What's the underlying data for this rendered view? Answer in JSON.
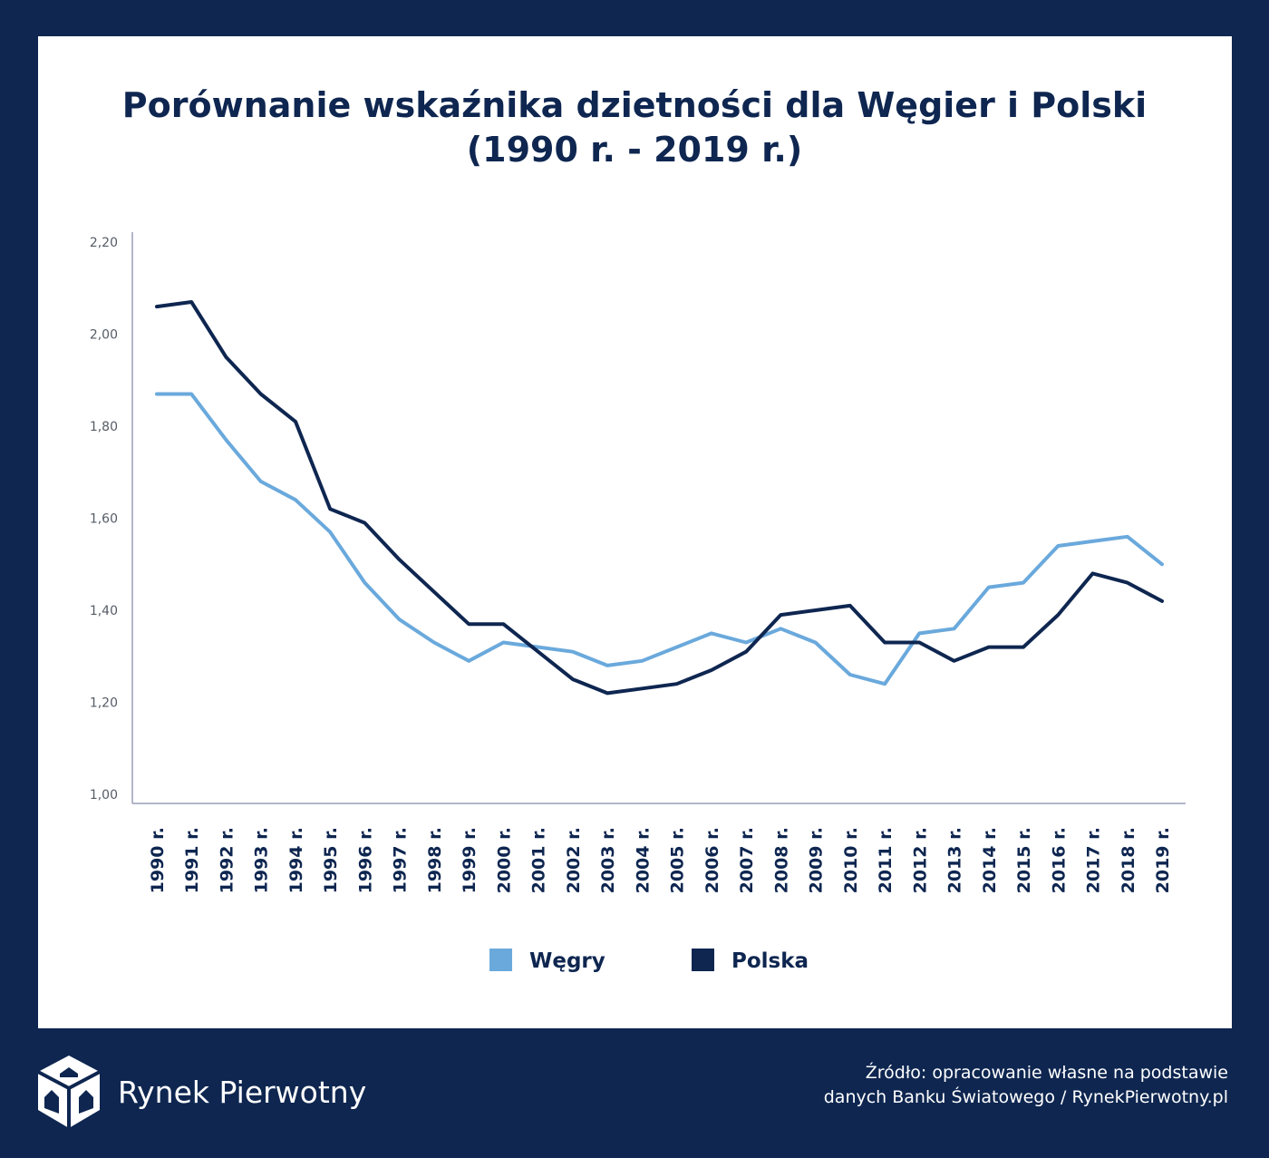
{
  "title_line1": "Porównanie wskaźnika dzietności dla Węgier i Polski",
  "title_line2": "(1990 r. - 2019 r.)",
  "source_line1": "Źródło: opracowanie własne na podstawie",
  "source_line2": "danych Banku Światowego / RynekPierwotny.pl",
  "brand": {
    "name": "Rynek Pierwotny",
    "icon": "house-cube-logo-icon"
  },
  "colors": {
    "background": "#0e2650",
    "wegry": "#6aa9dc",
    "polska": "#0e2650"
  },
  "chart_data": {
    "type": "line",
    "title": "Porównanie wskaźnika dzietności dla Węgier i Polski (1990 r. - 2019 r.)",
    "categories": [
      "1990 r.",
      "1991 r.",
      "1992 r.",
      "1993 r.",
      "1994 r.",
      "1995 r.",
      "1996 r.",
      "1997 r.",
      "1998 r.",
      "1999 r.",
      "2000 r.",
      "2001 r.",
      "2002 r.",
      "2003 r.",
      "2004 r.",
      "2005 r.",
      "2006 r.",
      "2007 r.",
      "2008 r.",
      "2009 r.",
      "2010 r.",
      "2011 r.",
      "2012 r.",
      "2013 r.",
      "2014 r.",
      "2015 r.",
      "2016 r.",
      "2017 r.",
      "2018 r.",
      "2019 r."
    ],
    "y_ticks": [
      "1,00",
      "1,20",
      "1,40",
      "1,60",
      "1,80",
      "2,00",
      "2,20"
    ],
    "ylim": [
      1.0,
      2.2
    ],
    "grid": false,
    "legend_position": "bottom",
    "series": [
      {
        "name": "Węgry",
        "color": "#6aa9dc",
        "values": [
          1.87,
          1.87,
          1.77,
          1.68,
          1.64,
          1.57,
          1.46,
          1.38,
          1.33,
          1.29,
          1.33,
          1.32,
          1.31,
          1.28,
          1.29,
          1.32,
          1.35,
          1.33,
          1.36,
          1.33,
          1.26,
          1.24,
          1.35,
          1.36,
          1.45,
          1.46,
          1.54,
          1.55,
          1.56,
          1.5
        ]
      },
      {
        "name": "Polska",
        "color": "#0e2650",
        "values": [
          2.06,
          2.07,
          1.95,
          1.87,
          1.81,
          1.62,
          1.59,
          1.51,
          1.44,
          1.37,
          1.37,
          1.31,
          1.25,
          1.22,
          1.23,
          1.24,
          1.27,
          1.31,
          1.39,
          1.4,
          1.41,
          1.33,
          1.33,
          1.29,
          1.32,
          1.32,
          1.39,
          1.48,
          1.46,
          1.42
        ]
      }
    ]
  }
}
